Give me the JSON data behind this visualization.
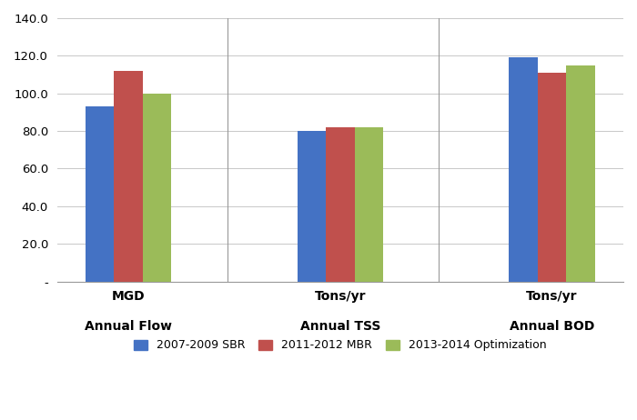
{
  "groups": [
    "Annual Flow",
    "Annual TSS",
    "Annual BOD"
  ],
  "units": [
    "MGD",
    "Tons/yr",
    "Tons/yr"
  ],
  "series": [
    {
      "label": "2007-2009 SBR",
      "color": "#4472C4",
      "values": [
        93.0,
        80.0,
        119.0
      ]
    },
    {
      "label": "2011-2012 MBR",
      "color": "#C0504D",
      "values": [
        112.0,
        82.0,
        111.0
      ]
    },
    {
      "label": "2013-2014 Optimization",
      "color": "#9BBB59",
      "values": [
        100.0,
        82.0,
        115.0
      ]
    }
  ],
  "ylim": [
    0,
    140
  ],
  "yticks": [
    0,
    20.0,
    40.0,
    60.0,
    80.0,
    100.0,
    120.0,
    140.0
  ],
  "background_color": "#FFFFFF",
  "grid_color": "#C8C8C8",
  "bar_width": 0.27,
  "group_positions": [
    1.0,
    3.0,
    5.0
  ],
  "legend_fontsize": 9,
  "axis_label_fontsize": 10,
  "tick_label_fontsize": 9.5
}
